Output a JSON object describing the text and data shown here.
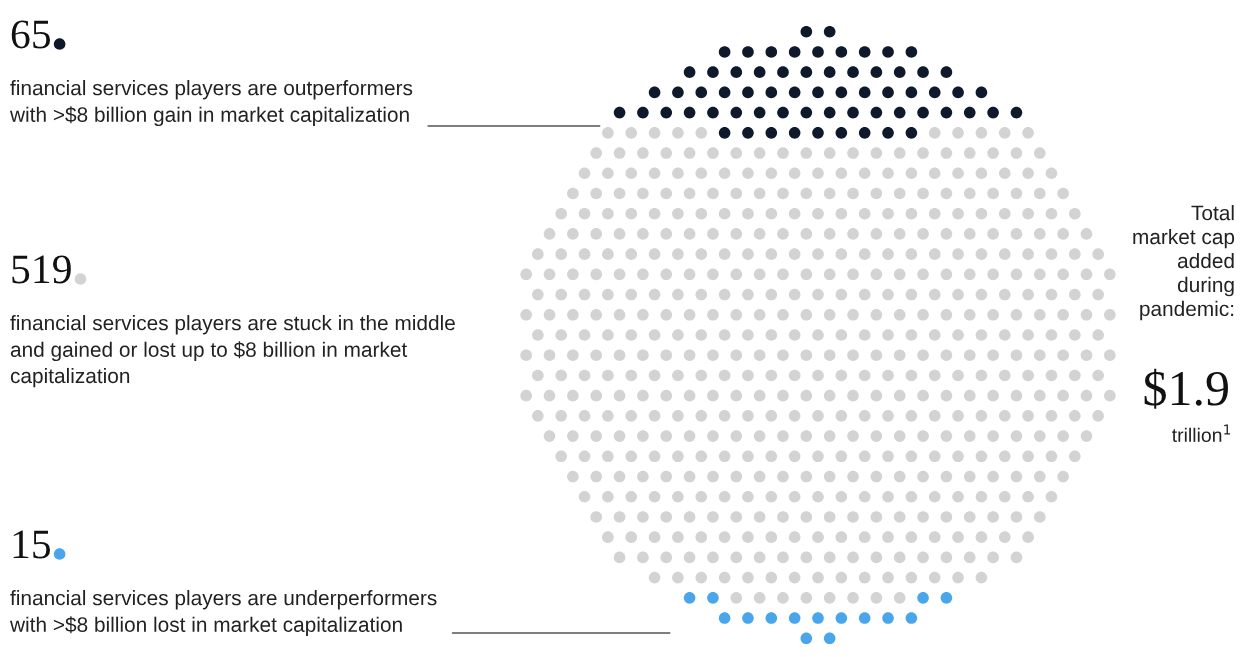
{
  "chart_data": {
    "type": "other",
    "categories": [
      "financial services players are outperformers\nwith >$8 billion gain in market capitalization",
      "financial services players are stuck in the middle\nand gained or lost up to $8 billion in market\ncapitalization",
      "financial services players are underperformers\nwith >$8 billion lost in market capitalization"
    ],
    "values": [
      65,
      519,
      15
    ],
    "data_labels": true,
    "colors": [
      "#0e1a2b",
      "#d3d3d3",
      "#4aa6ea"
    ],
    "annotations": [
      "Total\nmarket cap\nadded\nduring\npandemic:",
      "$1.9",
      "trillion$^{1}$"
    ]
  }
}
